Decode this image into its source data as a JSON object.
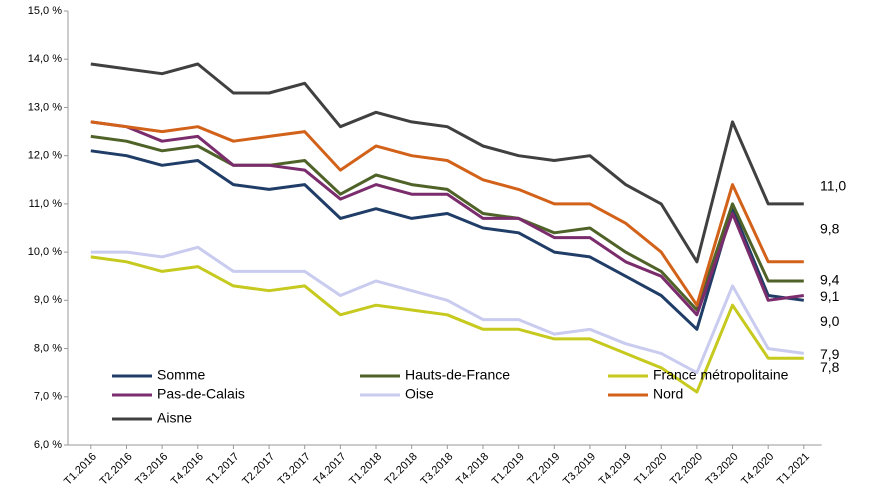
{
  "chart_data": {
    "type": "line",
    "categories": [
      "T1.2016",
      "T2.2016",
      "T3.2016",
      "T4.2016",
      "T1.2017",
      "T2.2017",
      "T3.2017",
      "T4.2017",
      "T1.2018",
      "T2.2018",
      "T3.2018",
      "T4.2018",
      "T1.2019",
      "T2.2019",
      "T3.2019",
      "T4.2019",
      "T1.2020",
      "T2.2020",
      "T3.2020",
      "T4.2020",
      "T1.2021"
    ],
    "ylim": [
      6,
      15
    ],
    "yticks": [
      {
        "value": 6,
        "label": "6,0 %"
      },
      {
        "value": 7,
        "label": "7,0 %"
      },
      {
        "value": 8,
        "label": "8,0 %"
      },
      {
        "value": 9,
        "label": "9,0 %"
      },
      {
        "value": 10,
        "label": "10,0 %"
      },
      {
        "value": 11,
        "label": "11,0 %"
      },
      {
        "value": 12,
        "label": "12,0 %"
      },
      {
        "value": 13,
        "label": "13,0 %"
      },
      {
        "value": 14,
        "label": "14,0 %"
      },
      {
        "value": 15,
        "label": "15,0 %"
      }
    ],
    "grid": false,
    "series": [
      {
        "name": "Somme",
        "color": "#1f3d66",
        "values": [
          12.1,
          12.0,
          11.8,
          11.9,
          11.4,
          11.3,
          11.4,
          10.7,
          10.9,
          10.7,
          10.8,
          10.5,
          10.4,
          10.0,
          9.9,
          9.5,
          9.1,
          8.4,
          10.9,
          9.1,
          9.0
        ],
        "value_labels": [
          null,
          null,
          null,
          null,
          null,
          null,
          null,
          null,
          null,
          null,
          null,
          null,
          null,
          null,
          null,
          null,
          null,
          null,
          null,
          null,
          "9,0"
        ]
      },
      {
        "name": "Hauts-de-France",
        "color": "#4f6228",
        "values": [
          12.4,
          12.3,
          12.1,
          12.2,
          11.8,
          11.8,
          11.9,
          11.2,
          11.6,
          11.4,
          11.3,
          10.8,
          10.7,
          10.4,
          10.5,
          10.0,
          9.6,
          8.8,
          11.0,
          9.4,
          9.4
        ],
        "value_labels": [
          null,
          null,
          null,
          null,
          null,
          null,
          null,
          null,
          null,
          null,
          null,
          null,
          null,
          null,
          null,
          null,
          null,
          null,
          null,
          null,
          "9,4"
        ]
      },
      {
        "name": "France métropolitaine",
        "color": "#c6c91e",
        "values": [
          9.9,
          9.8,
          9.6,
          9.7,
          9.3,
          9.2,
          9.3,
          8.7,
          8.9,
          8.8,
          8.7,
          8.4,
          8.4,
          8.2,
          8.2,
          7.9,
          7.6,
          7.1,
          8.9,
          7.8,
          7.8
        ],
        "value_labels": [
          null,
          null,
          null,
          null,
          null,
          null,
          null,
          null,
          null,
          null,
          null,
          null,
          null,
          null,
          null,
          null,
          null,
          null,
          null,
          null,
          "7,8"
        ]
      },
      {
        "name": "Pas-de-Calais",
        "color": "#7a2c6c",
        "values": [
          12.7,
          12.6,
          12.3,
          12.4,
          11.8,
          11.8,
          11.7,
          11.1,
          11.4,
          11.2,
          11.2,
          10.7,
          10.7,
          10.3,
          10.3,
          9.8,
          9.5,
          8.7,
          10.8,
          9.0,
          9.1
        ],
        "value_labels": [
          null,
          null,
          null,
          null,
          null,
          null,
          null,
          null,
          null,
          null,
          null,
          null,
          null,
          null,
          null,
          null,
          null,
          null,
          null,
          null,
          "9,1"
        ]
      },
      {
        "name": "Oise",
        "color": "#c9cbef",
        "values": [
          10.0,
          10.0,
          9.9,
          10.1,
          9.6,
          9.6,
          9.6,
          9.1,
          9.4,
          9.2,
          9.0,
          8.6,
          8.6,
          8.3,
          8.4,
          8.1,
          7.9,
          7.5,
          9.3,
          8.0,
          7.9
        ],
        "value_labels": [
          null,
          null,
          null,
          null,
          null,
          null,
          null,
          null,
          null,
          null,
          null,
          null,
          null,
          null,
          null,
          null,
          null,
          null,
          null,
          null,
          "7,9"
        ]
      },
      {
        "name": "Nord",
        "color": "#d2621a",
        "values": [
          12.7,
          12.6,
          12.5,
          12.6,
          12.3,
          12.4,
          12.5,
          11.7,
          12.2,
          12.0,
          11.9,
          11.5,
          11.3,
          11.0,
          11.0,
          10.6,
          10.0,
          8.9,
          11.4,
          9.8,
          9.8
        ],
        "value_labels": [
          null,
          null,
          null,
          null,
          null,
          null,
          null,
          null,
          null,
          null,
          null,
          null,
          null,
          null,
          null,
          null,
          null,
          null,
          null,
          null,
          "9,8"
        ]
      },
      {
        "name": "Aisne",
        "color": "#404040",
        "values": [
          13.9,
          13.8,
          13.7,
          13.9,
          13.3,
          13.3,
          13.5,
          12.6,
          12.9,
          12.7,
          12.6,
          12.2,
          12.0,
          11.9,
          12.0,
          11.4,
          11.0,
          9.8,
          12.7,
          11.0,
          11.0
        ],
        "value_labels": [
          null,
          null,
          null,
          null,
          null,
          null,
          null,
          null,
          null,
          null,
          null,
          null,
          null,
          null,
          null,
          null,
          null,
          null,
          null,
          null,
          "11,0"
        ]
      }
    ]
  }
}
